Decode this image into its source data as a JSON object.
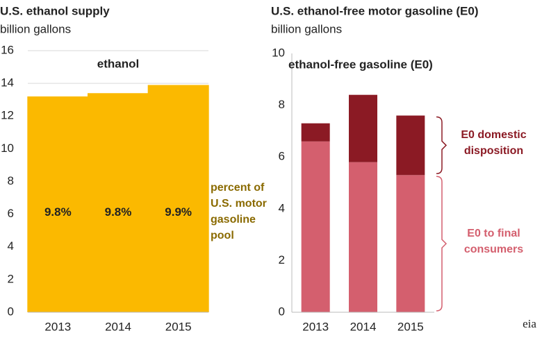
{
  "chart_data": [
    {
      "type": "bar",
      "title": "U.S. ethanol supply",
      "subtitle": "billion gallons",
      "categories": [
        "2013",
        "2014",
        "2015"
      ],
      "series": [
        {
          "name": "ethanol",
          "color": "#fbb900",
          "values": [
            13.2,
            13.4,
            13.9
          ]
        }
      ],
      "bar_labels": [
        "9.8%",
        "9.8%",
        "9.9%"
      ],
      "annotation": "percent of U.S. motor gasoline pool",
      "ylim": [
        0,
        16
      ],
      "yticks": [
        0,
        2,
        4,
        6,
        8,
        10,
        12,
        14,
        16
      ],
      "grid": true
    },
    {
      "type": "stacked_bar",
      "title": "U.S. ethanol-free motor gasoline (E0)",
      "subtitle": "billion gallons",
      "header": "ethanol-free gasoline  (E0)",
      "categories": [
        "2013",
        "2014",
        "2015"
      ],
      "series": [
        {
          "name": "E0 to final consumers",
          "color": "#d45f6e",
          "values": [
            6.6,
            5.8,
            5.3
          ]
        },
        {
          "name": "E0 domestic disposition",
          "color": "#8b1a24",
          "values": [
            0.7,
            2.6,
            2.3
          ]
        }
      ],
      "ylim": [
        0,
        10
      ],
      "yticks": [
        0,
        2,
        4,
        6,
        8,
        10
      ],
      "grid": false,
      "source": "eia"
    }
  ]
}
